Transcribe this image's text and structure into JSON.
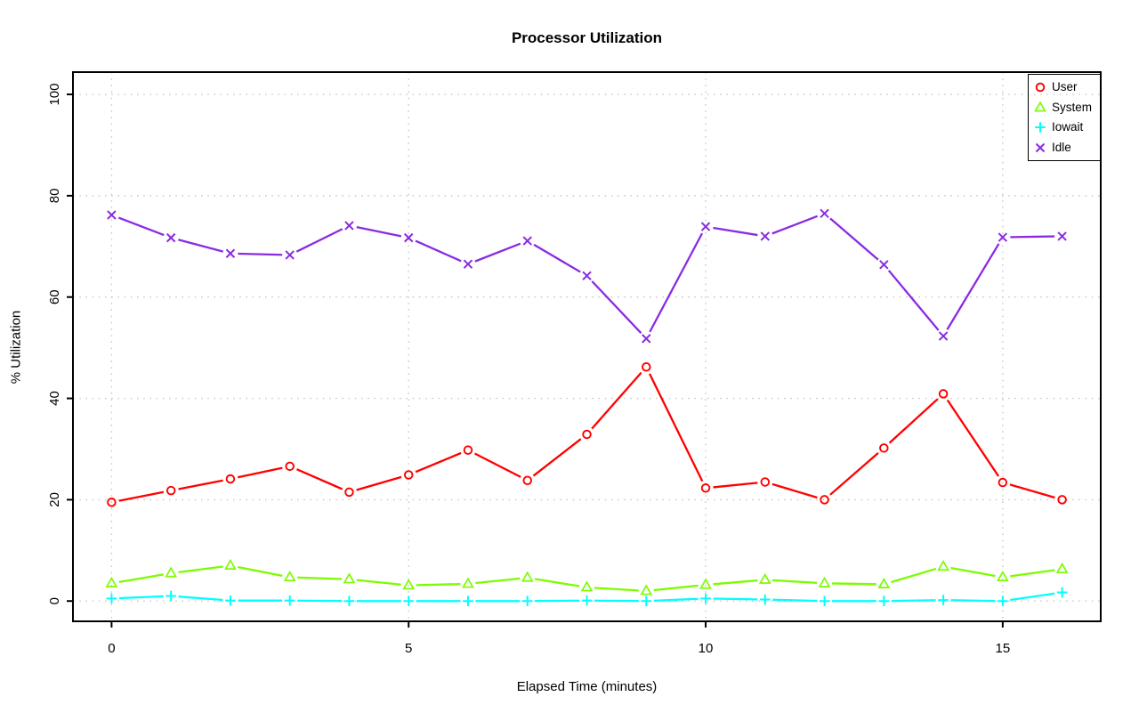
{
  "chart_data": {
    "type": "line",
    "title": "Processor Utilization",
    "xlabel": "Elapsed Time (minutes)",
    "ylabel": "% Utilization",
    "x": [
      0,
      1,
      2,
      3,
      4,
      5,
      6,
      7,
      8,
      9,
      10,
      11,
      12,
      13,
      14,
      15,
      16
    ],
    "xticks": [
      0,
      5,
      10,
      15
    ],
    "yticks": [
      0,
      20,
      40,
      60,
      80,
      100
    ],
    "xlim": [
      -0.65,
      16.65
    ],
    "ylim": [
      -4.0,
      104.4
    ],
    "grid": true,
    "grid_color": "#C9C9C9",
    "axis_color": "#000000",
    "background": "#FFFFFF",
    "legend_position": "top-right",
    "line_style": "segments-with-marker-gaps",
    "series": [
      {
        "name": "User",
        "color": "#FF0000",
        "marker": "circle",
        "values": [
          19.5,
          21.8,
          24.1,
          26.6,
          21.5,
          24.9,
          29.8,
          23.8,
          32.9,
          46.2,
          22.3,
          23.5,
          20.0,
          30.2,
          40.9,
          23.4,
          20.0
        ]
      },
      {
        "name": "System",
        "color": "#7CFC00",
        "marker": "triangle",
        "values": [
          3.5,
          5.5,
          7.0,
          4.7,
          4.3,
          3.1,
          3.4,
          4.6,
          2.7,
          2.0,
          3.2,
          4.2,
          3.5,
          3.3,
          6.8,
          4.7,
          6.3
        ]
      },
      {
        "name": "Iowait",
        "color": "#00FFFF",
        "marker": "plus",
        "values": [
          0.5,
          1.0,
          0.1,
          0.1,
          0.0,
          0.0,
          0.0,
          0.0,
          0.1,
          0.0,
          0.5,
          0.3,
          0.0,
          0.0,
          0.2,
          0.0,
          1.7
        ]
      },
      {
        "name": "Idle",
        "color": "#8A2BE2",
        "marker": "x",
        "values": [
          76.2,
          71.7,
          68.6,
          68.3,
          74.1,
          71.7,
          66.5,
          71.1,
          64.2,
          51.8,
          73.9,
          72.0,
          76.5,
          66.4,
          52.3,
          71.8,
          72.0
        ]
      }
    ]
  }
}
